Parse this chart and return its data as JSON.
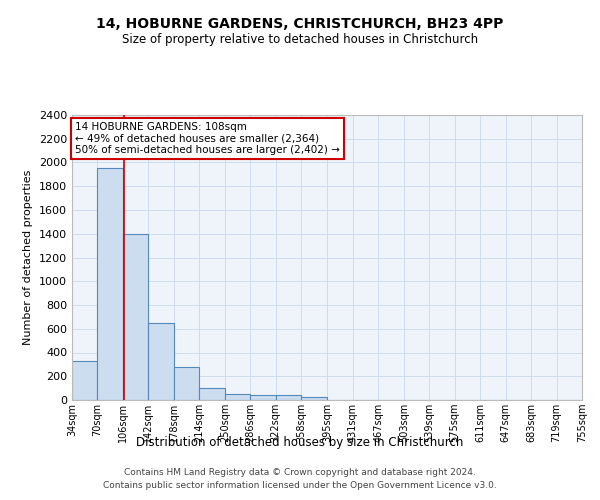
{
  "title1": "14, HOBURNE GARDENS, CHRISTCHURCH, BH23 4PP",
  "title2": "Size of property relative to detached houses in Christchurch",
  "xlabel": "Distribution of detached houses by size in Christchurch",
  "ylabel": "Number of detached properties",
  "footer1": "Contains HM Land Registry data © Crown copyright and database right 2024.",
  "footer2": "Contains public sector information licensed under the Open Government Licence v3.0.",
  "bar_left_edges": [
    34,
    70,
    106,
    142,
    178,
    214,
    250,
    286,
    322,
    358,
    395,
    431,
    467,
    503,
    539,
    575,
    611,
    647,
    683,
    719
  ],
  "bar_heights": [
    325,
    1950,
    1400,
    650,
    275,
    100,
    50,
    45,
    38,
    22,
    0,
    0,
    0,
    0,
    0,
    0,
    0,
    0,
    0,
    0
  ],
  "bin_width": 36,
  "bar_color": "#ccddf0",
  "bar_edge_color": "#5588bb",
  "grid_color": "#ccddee",
  "bg_color": "#eef4fa",
  "property_size": 108,
  "red_line_color": "#cc0000",
  "annotation_line1": "14 HOBURNE GARDENS: 108sqm",
  "annotation_line2": "← 49% of detached houses are smaller (2,364)",
  "annotation_line3": "50% of semi-detached houses are larger (2,402) →",
  "annotation_box_color": "#cc0000",
  "annotation_bg": "#ffffff",
  "ylim": [
    0,
    2400
  ],
  "yticks": [
    0,
    200,
    400,
    600,
    800,
    1000,
    1200,
    1400,
    1600,
    1800,
    2000,
    2200,
    2400
  ],
  "xtick_labels": [
    "34sqm",
    "70sqm",
    "106sqm",
    "142sqm",
    "178sqm",
    "214sqm",
    "250sqm",
    "286sqm",
    "322sqm",
    "358sqm",
    "395sqm",
    "431sqm",
    "467sqm",
    "503sqm",
    "539sqm",
    "575sqm",
    "611sqm",
    "647sqm",
    "683sqm",
    "719sqm",
    "755sqm"
  ]
}
